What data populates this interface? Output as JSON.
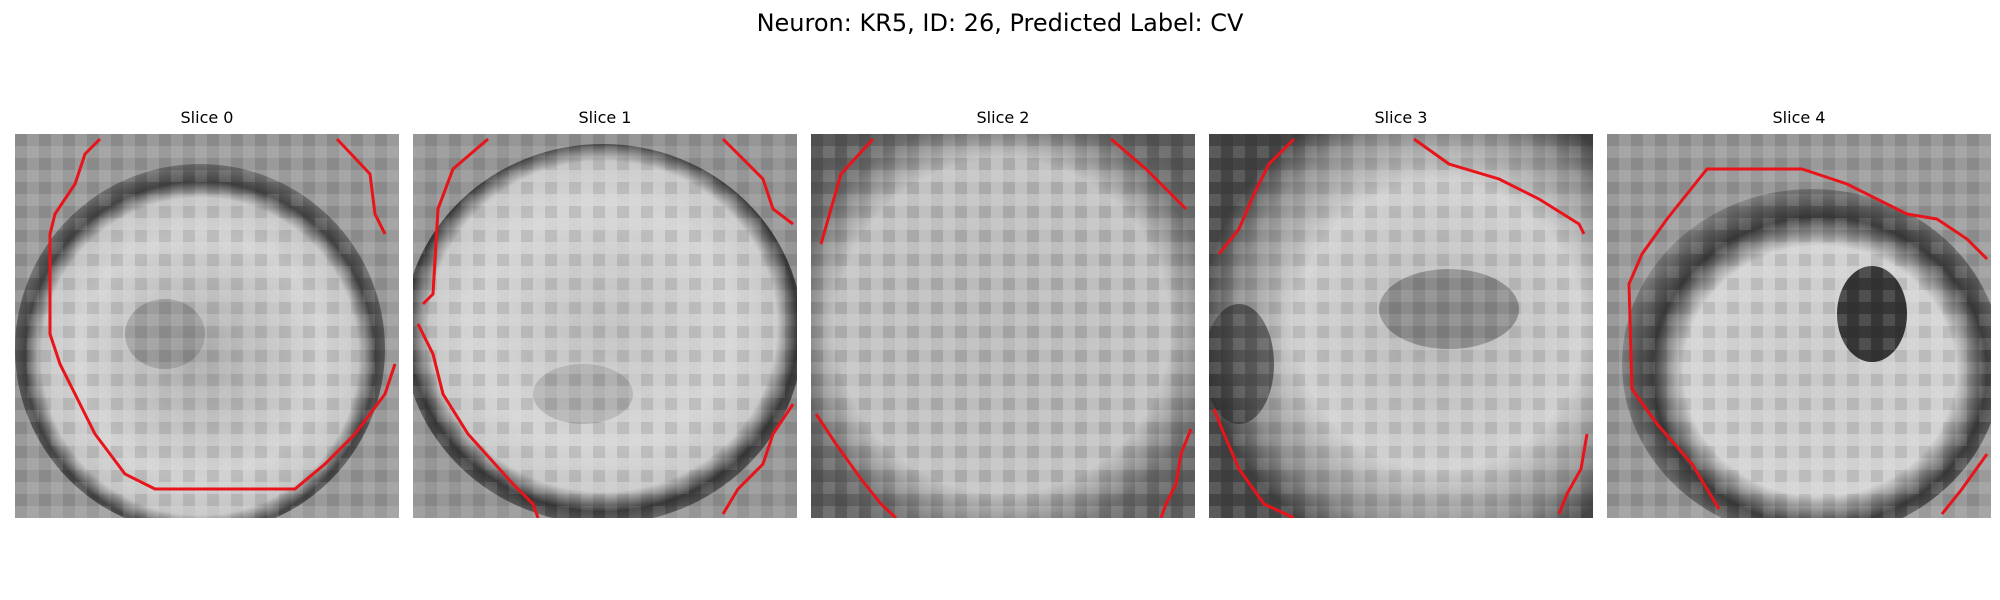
{
  "figure": {
    "title": "Neuron: KR5, ID: 26, Predicted Label: CV"
  },
  "colors": {
    "contour": "#e8141a",
    "background": "#ffffff"
  },
  "panels": [
    {
      "title": "Slice 0"
    },
    {
      "title": "Slice 1"
    },
    {
      "title": "Slice 2"
    },
    {
      "title": "Slice 3"
    },
    {
      "title": "Slice 4"
    }
  ]
}
